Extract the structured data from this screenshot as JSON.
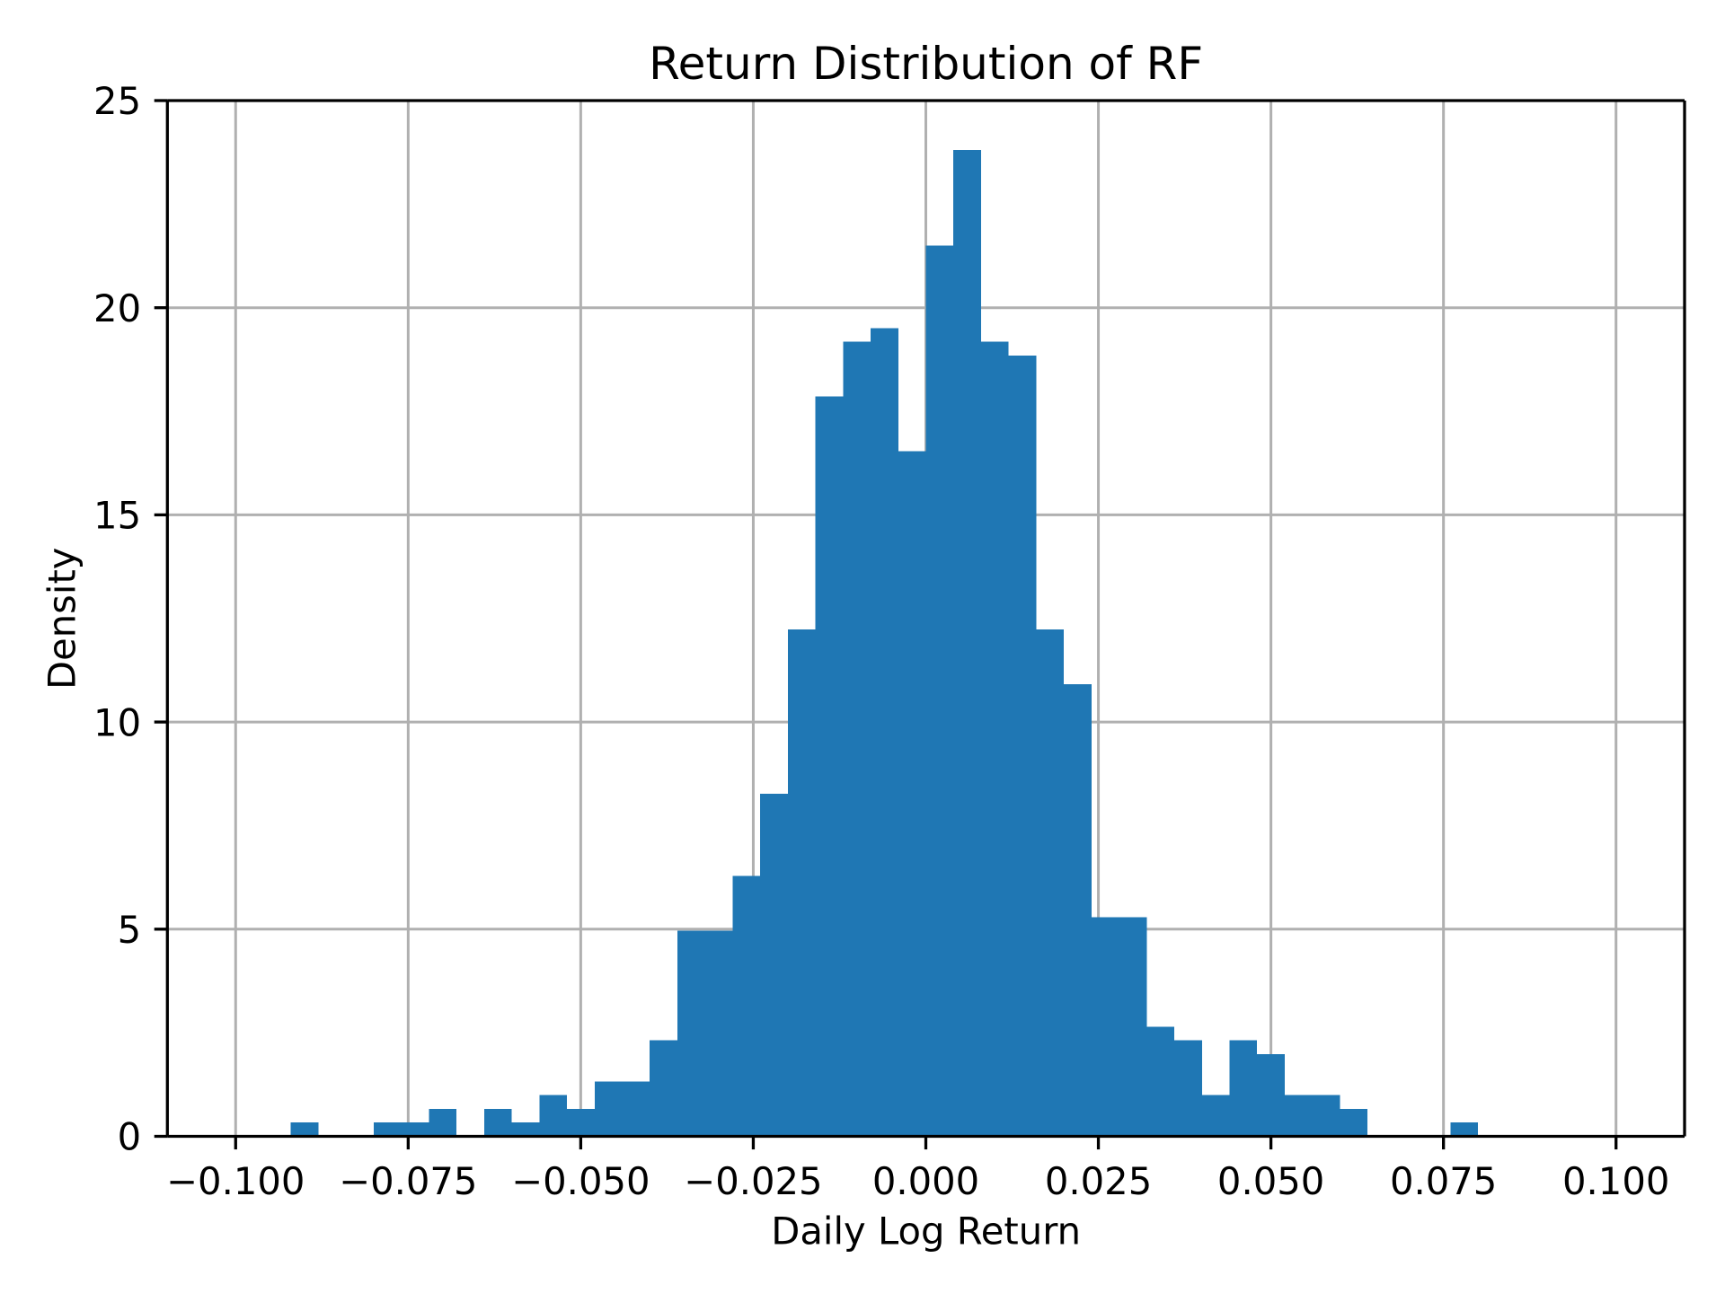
{
  "chart_data": {
    "type": "bar",
    "subtype": "histogram",
    "title": "Return Distribution of RF",
    "xlabel": "Daily Log Return",
    "ylabel": "Density",
    "xlim": [
      -0.10989,
      0.10993
    ],
    "ylim": [
      0,
      25
    ],
    "x_ticks": [
      -0.1,
      -0.075,
      -0.05,
      -0.025,
      0.0,
      0.025,
      0.05,
      0.075,
      0.1
    ],
    "x_tick_labels": [
      "−0.100",
      "−0.075",
      "−0.050",
      "−0.025",
      "0.000",
      "0.025",
      "0.050",
      "0.075",
      "0.100"
    ],
    "y_ticks": [
      0,
      5,
      10,
      15,
      20,
      25
    ],
    "y_tick_labels": [
      "0",
      "5",
      "10",
      "15",
      "20",
      "25"
    ],
    "grid": true,
    "legend": "none",
    "bin_start": -0.092,
    "bin_width": 0.004,
    "counts": [
      1,
      0,
      0,
      1,
      1,
      2,
      0,
      2,
      1,
      3,
      2,
      4,
      4,
      7,
      15,
      15,
      19,
      25,
      37,
      54,
      58,
      59,
      50,
      65,
      72,
      58,
      57,
      37,
      33,
      16,
      16,
      8,
      7,
      3,
      7,
      6,
      3,
      3,
      2,
      0,
      0,
      0,
      1
    ],
    "densities": [
      0.331,
      0,
      0,
      0.331,
      0.331,
      0.661,
      0,
      0.661,
      0.331,
      0.992,
      0.661,
      1.323,
      1.323,
      2.315,
      4.96,
      4.96,
      6.283,
      8.267,
      12.235,
      17.857,
      19.18,
      19.511,
      16.534,
      21.495,
      23.81,
      19.18,
      18.849,
      12.235,
      10.913,
      5.291,
      5.291,
      2.646,
      2.315,
      0.992,
      2.315,
      1.984,
      0.992,
      0.992,
      0.661,
      0,
      0,
      0,
      0.331
    ],
    "bar_color": "#1f77b4",
    "grid_color": "#b0b0b0",
    "axis_color": "#000000",
    "background_color": "#ffffff"
  }
}
